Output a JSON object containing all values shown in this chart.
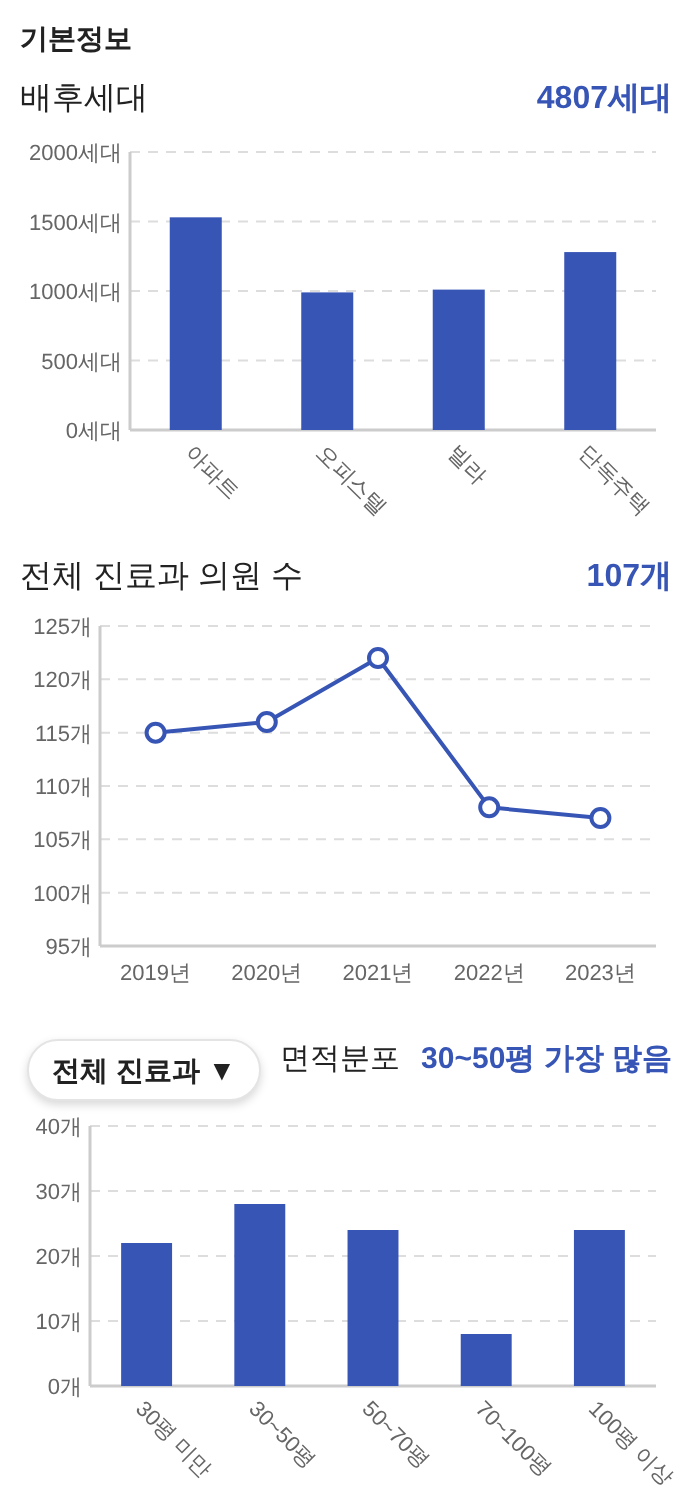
{
  "chart_data": [
    {
      "type": "bar",
      "annotations": [
        "기본정보"
      ],
      "title": "배후세대",
      "subtitle": "4807세대",
      "categories": [
        "아파트",
        "오피스텔",
        "빌라",
        "단독주택"
      ],
      "values": [
        1530,
        990,
        1010,
        1280
      ],
      "color": "#3755b5",
      "ylim": [
        0,
        2000
      ],
      "yticks": [
        {
          "value": 0,
          "label": "0세대"
        },
        {
          "value": 500,
          "label": "500세대"
        },
        {
          "value": 1000,
          "label": "1000세대"
        },
        {
          "value": 1500,
          "label": "1500세대"
        },
        {
          "value": 2000,
          "label": "2000세대"
        }
      ],
      "grid": "y"
    },
    {
      "type": "line",
      "title": "전체 진료과 의원 수",
      "subtitle": "107개",
      "categories": [
        "2019년",
        "2020년",
        "2021년",
        "2022년",
        "2023년"
      ],
      "values": [
        115,
        116,
        122,
        108,
        107
      ],
      "color": "#3755b5",
      "marker": "circle",
      "ylim": [
        95,
        125
      ],
      "yticks": [
        {
          "value": 95,
          "label": "95개"
        },
        {
          "value": 100,
          "label": "100개"
        },
        {
          "value": 105,
          "label": "105개"
        },
        {
          "value": 110,
          "label": "110개"
        },
        {
          "value": 115,
          "label": "115개"
        },
        {
          "value": 120,
          "label": "120개"
        },
        {
          "value": 125,
          "label": "125개"
        }
      ],
      "grid": "y"
    },
    {
      "type": "bar",
      "annotations": [
        "전체 진료과 ▼"
      ],
      "title": "면적분포",
      "subtitle": "30~50평 가장 많음",
      "categories": [
        "30평 미만",
        "30~50평",
        "50~70평",
        "70~100평",
        "100평 이상"
      ],
      "values": [
        22,
        28,
        24,
        8,
        24
      ],
      "color": "#3755b5",
      "ylim": [
        0,
        40
      ],
      "yticks": [
        {
          "value": 0,
          "label": "0개"
        },
        {
          "value": 10,
          "label": "10개"
        },
        {
          "value": 20,
          "label": "20개"
        },
        {
          "value": 30,
          "label": "30개"
        },
        {
          "value": 40,
          "label": "40개"
        }
      ],
      "grid": "y"
    }
  ]
}
